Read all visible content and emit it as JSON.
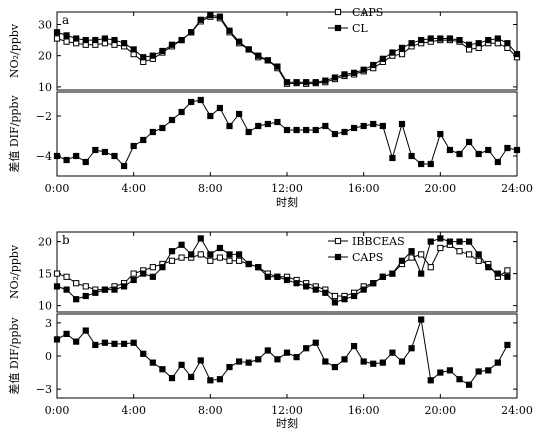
{
  "chart_data": [
    {
      "type": "line",
      "panel_label": "a",
      "xlabel": "时刻",
      "x_ticks": [
        "0:00",
        "4:00",
        "8:00",
        "12:00",
        "16:00",
        "20:00",
        "24:00"
      ],
      "xlim": [
        0,
        24
      ],
      "top": {
        "ylabel": "NO₂/ppbv",
        "ylim": [
          9,
          34
        ],
        "y_ticks": [
          10,
          20,
          30
        ],
        "legend_position": "top-right",
        "series": [
          {
            "name": "CAPS",
            "marker": "open-square",
            "x": [
              0,
              0.5,
              1,
              1.5,
              2,
              2.5,
              3,
              3.5,
              4,
              4.5,
              5,
              5.5,
              6,
              6.5,
              7,
              7.5,
              8,
              8.5,
              9,
              9.5,
              10,
              10.5,
              11,
              11.5,
              12,
              12.5,
              13,
              13.5,
              14,
              14.5,
              15,
              15.5,
              16,
              16.5,
              17,
              17.5,
              18,
              18.5,
              19,
              19.5,
              20,
              20.5,
              21,
              21.5,
              22,
              22.5,
              23,
              23.5,
              24
            ],
            "y": [
              25.5,
              24.5,
              24,
              23.5,
              23.5,
              24,
              23.5,
              23,
              20.5,
              18,
              19,
              21,
              23,
              25,
              27.5,
              31,
              32.5,
              32,
              27.5,
              24,
              22,
              19.5,
              18.5,
              16,
              11,
              11.2,
              11,
              11.2,
              11.5,
              12.5,
              13.5,
              14,
              15,
              16,
              18,
              20,
              20.5,
              23,
              24,
              24.5,
              25,
              25,
              24.5,
              22,
              22.5,
              24,
              24,
              22.5,
              19.5
            ]
          },
          {
            "name": "CL",
            "marker": "filled-square",
            "x": [
              0,
              0.5,
              1,
              1.5,
              2,
              2.5,
              3,
              3.5,
              4,
              4.5,
              5,
              5.5,
              6,
              6.5,
              7,
              7.5,
              8,
              8.5,
              9,
              9.5,
              10,
              10.5,
              11,
              11.5,
              12,
              12.5,
              13,
              13.5,
              14,
              14.5,
              15,
              15.5,
              16,
              16.5,
              17,
              17.5,
              18,
              18.5,
              19,
              19.5,
              20,
              20.5,
              21,
              21.5,
              22,
              22.5,
              23,
              23.5,
              24
            ],
            "y": [
              27.5,
              26.5,
              25.5,
              25,
              25,
              25.5,
              25,
              24,
              22,
              19.5,
              20,
              21.5,
              23.5,
              25,
              27.5,
              31.5,
              33,
              32.5,
              28,
              24.5,
              22,
              20,
              18.5,
              16.5,
              11.5,
              11.5,
              11.5,
              11.5,
              12,
              13,
              14,
              14.5,
              15.5,
              17,
              19,
              21,
              22.5,
              24,
              25,
              25.5,
              25.5,
              25.5,
              25,
              23.5,
              24,
              25,
              25.5,
              24,
              20.5
            ]
          }
        ]
      },
      "bottom": {
        "ylabel": "差值 DIF/ppbv",
        "ylim": [
          -5,
          -0.8
        ],
        "y_ticks": [
          -4,
          -2
        ],
        "series": [
          {
            "name": "",
            "marker": "filled-square",
            "x": [
              0,
              0.5,
              1,
              1.5,
              2,
              2.5,
              3,
              3.5,
              4,
              4.5,
              5,
              5.5,
              6,
              6.5,
              7,
              7.5,
              8,
              8.5,
              9,
              9.5,
              10,
              10.5,
              11,
              11.5,
              12,
              12.5,
              13,
              13.5,
              14,
              14.5,
              15,
              15.5,
              16,
              16.5,
              17,
              17.5,
              18,
              18.5,
              19,
              19.5,
              20,
              20.5,
              21,
              21.5,
              22,
              22.5,
              23,
              23.5,
              24
            ],
            "y": [
              -4,
              -4.2,
              -4,
              -4.3,
              -3.7,
              -3.8,
              -4,
              -4.5,
              -3.5,
              -3.2,
              -2.8,
              -2.6,
              -2.2,
              -1.8,
              -1.3,
              -1.2,
              -2,
              -1.6,
              -2.5,
              -1.9,
              -2.8,
              -2.5,
              -2.4,
              -2.3,
              -2.7,
              -2.7,
              -2.7,
              -2.7,
              -2.5,
              -2.9,
              -2.8,
              -2.6,
              -2.5,
              -2.4,
              -2.5,
              -4.1,
              -2.4,
              -4,
              -4.4,
              -4.4,
              -2.9,
              -3.7,
              -3.9,
              -3.3,
              -3.9,
              -3.7,
              -4.3,
              -3.6,
              -3.7
            ]
          }
        ]
      }
    },
    {
      "type": "line",
      "panel_label": "b",
      "xlabel": "时刻",
      "x_ticks": [
        "0:00",
        "4:00",
        "8:00",
        "12:00",
        "16:00",
        "20:00",
        "24:00"
      ],
      "xlim": [
        0,
        24
      ],
      "top": {
        "ylabel": "NO₂/ppbv",
        "ylim": [
          9,
          21.5
        ],
        "y_ticks": [
          10,
          15,
          20
        ],
        "legend_position": "top-right",
        "series": [
          {
            "name": "IBBCEAS",
            "marker": "open-square",
            "x": [
              0,
              0.5,
              1,
              1.5,
              2,
              2.5,
              3,
              3.5,
              4,
              4.5,
              5,
              5.5,
              6,
              6.5,
              7,
              7.5,
              8,
              8.5,
              9,
              9.5,
              10,
              10.5,
              11,
              11.5,
              12,
              12.5,
              13,
              13.5,
              14,
              14.5,
              15,
              15.5,
              16,
              16.5,
              17,
              17.5,
              18,
              18.5,
              19,
              19.5,
              20,
              20.5,
              21,
              21.5,
              22,
              22.5,
              23,
              23.5
            ],
            "y": [
              15,
              14.5,
              13.5,
              13,
              12.5,
              12.5,
              13,
              13.5,
              15,
              15.5,
              16,
              16.5,
              17,
              17.5,
              17.5,
              18,
              17,
              17.5,
              17,
              17,
              16.5,
              16,
              15,
              14.5,
              14.5,
              14,
              13.5,
              13,
              12.5,
              11.5,
              11.5,
              12,
              13,
              13.5,
              14.5,
              15,
              16.5,
              17.5,
              18,
              16,
              19,
              19.5,
              18.5,
              18,
              17,
              16.5,
              14.5,
              15.5
            ]
          },
          {
            "name": "CAPS",
            "marker": "filled-square",
            "x": [
              0,
              0.5,
              1,
              1.5,
              2,
              2.5,
              3,
              3.5,
              4,
              4.5,
              5,
              5.5,
              6,
              6.5,
              7,
              7.5,
              8,
              8.5,
              9,
              9.5,
              10,
              10.5,
              11,
              11.5,
              12,
              12.5,
              13,
              13.5,
              14,
              14.5,
              15,
              15.5,
              16,
              16.5,
              17,
              17.5,
              18,
              18.5,
              19,
              19.5,
              20,
              20.5,
              21,
              21.5,
              22,
              22.5,
              23,
              23.5
            ],
            "y": [
              13,
              12.5,
              11,
              11.5,
              12,
              12.5,
              12.5,
              13,
              14,
              15,
              14.5,
              16,
              18.5,
              19.5,
              18,
              20.5,
              18,
              19,
              18,
              18,
              16.5,
              16,
              14.5,
              14.5,
              14,
              13.5,
              13,
              12.5,
              12,
              10.5,
              11,
              11.5,
              12.5,
              13.5,
              14.5,
              15,
              17,
              18.5,
              15,
              20,
              20.5,
              20,
              20,
              20,
              18,
              16,
              15,
              14.5
            ]
          }
        ]
      },
      "bottom": {
        "ylabel": "差值 DIF/ppbv",
        "ylim": [
          -3.8,
          3.8
        ],
        "y_ticks": [
          -3,
          0,
          3
        ],
        "series": [
          {
            "name": "",
            "marker": "filled-square",
            "x": [
              0,
              0.5,
              1,
              1.5,
              2,
              2.5,
              3,
              3.5,
              4,
              4.5,
              5,
              5.5,
              6,
              6.5,
              7,
              7.5,
              8,
              8.5,
              9,
              9.5,
              10,
              10.5,
              11,
              11.5,
              12,
              12.5,
              13,
              13.5,
              14,
              14.5,
              15,
              15.5,
              16,
              16.5,
              17,
              17.5,
              18,
              18.5,
              19,
              19.5,
              20,
              20.5,
              21,
              21.5,
              22,
              22.5,
              23,
              23.5
            ],
            "y": [
              1.5,
              2,
              1.3,
              2.3,
              1,
              1.2,
              1.1,
              1.1,
              1.2,
              0.2,
              -0.6,
              -1.2,
              -2,
              -0.8,
              -1.9,
              -0.4,
              -2.2,
              -2.1,
              -1,
              -0.5,
              -0.6,
              -0.3,
              0.5,
              -0.3,
              0.3,
              -0.1,
              0.7,
              1.2,
              -0.5,
              -1,
              -0.3,
              0.9,
              -0.5,
              -0.7,
              -0.6,
              0.3,
              -0.5,
              0.7,
              3.3,
              -2.2,
              -1.5,
              -1.3,
              -2.1,
              -2.6,
              -1.4,
              -1.3,
              -0.6,
              1
            ]
          }
        ]
      }
    }
  ]
}
